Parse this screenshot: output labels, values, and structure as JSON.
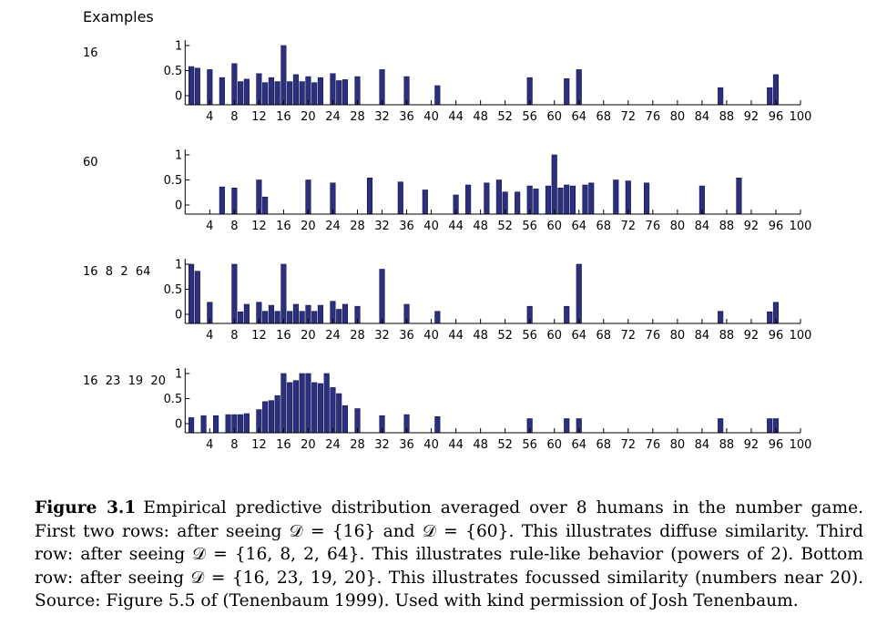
{
  "header": "Examples",
  "chart_data": [
    {
      "type": "bar",
      "label": "16",
      "x_ticks": [
        4,
        8,
        12,
        16,
        20,
        24,
        28,
        32,
        36,
        40,
        44,
        48,
        52,
        56,
        60,
        64,
        68,
        72,
        76,
        80,
        84,
        88,
        92,
        96,
        100
      ],
      "y_ticks": [
        "0",
        "0.5",
        "1"
      ],
      "xlim": [
        0,
        100
      ],
      "ylim": [
        0,
        1
      ],
      "points": [
        [
          1,
          0.58
        ],
        [
          2,
          0.55
        ],
        [
          4,
          0.52
        ],
        [
          6,
          0.36
        ],
        [
          8,
          0.64
        ],
        [
          9,
          0.28
        ],
        [
          10,
          0.33
        ],
        [
          12,
          0.44
        ],
        [
          13,
          0.26
        ],
        [
          14,
          0.36
        ],
        [
          15,
          0.28
        ],
        [
          16,
          1
        ],
        [
          17,
          0.28
        ],
        [
          18,
          0.42
        ],
        [
          19,
          0.28
        ],
        [
          20,
          0.38
        ],
        [
          21,
          0.26
        ],
        [
          22,
          0.36
        ],
        [
          24,
          0.44
        ],
        [
          25,
          0.3
        ],
        [
          26,
          0.32
        ],
        [
          28,
          0.38
        ],
        [
          32,
          0.52
        ],
        [
          36,
          0.38
        ],
        [
          41,
          0.2
        ],
        [
          56,
          0.36
        ],
        [
          62,
          0.34
        ],
        [
          64,
          0.52
        ],
        [
          87,
          0.16
        ],
        [
          95,
          0.16
        ],
        [
          96,
          0.42
        ]
      ]
    },
    {
      "type": "bar",
      "label": "60",
      "x_ticks": [
        4,
        8,
        12,
        16,
        20,
        24,
        28,
        32,
        36,
        40,
        44,
        48,
        52,
        56,
        60,
        64,
        68,
        72,
        76,
        80,
        84,
        88,
        92,
        96,
        100
      ],
      "y_ticks": [
        "0",
        "0.5",
        "1"
      ],
      "xlim": [
        0,
        100
      ],
      "ylim": [
        0,
        1
      ],
      "points": [
        [
          6,
          0.36
        ],
        [
          8,
          0.34
        ],
        [
          12,
          0.5
        ],
        [
          13,
          0.16
        ],
        [
          20,
          0.5
        ],
        [
          24,
          0.44
        ],
        [
          30,
          0.54
        ],
        [
          35,
          0.46
        ],
        [
          39,
          0.3
        ],
        [
          44,
          0.2
        ],
        [
          46,
          0.4
        ],
        [
          49,
          0.44
        ],
        [
          51,
          0.5
        ],
        [
          52,
          0.26
        ],
        [
          54,
          0.26
        ],
        [
          56,
          0.38
        ],
        [
          57,
          0.32
        ],
        [
          59,
          0.38
        ],
        [
          60,
          1
        ],
        [
          61,
          0.34
        ],
        [
          62,
          0.4
        ],
        [
          63,
          0.38
        ],
        [
          65,
          0.4
        ],
        [
          66,
          0.44
        ],
        [
          70,
          0.5
        ],
        [
          72,
          0.48
        ],
        [
          75,
          0.44
        ],
        [
          84,
          0.38
        ],
        [
          90,
          0.54
        ]
      ]
    },
    {
      "type": "bar",
      "label": "16  8  2  64",
      "x_ticks": [
        4,
        8,
        12,
        16,
        20,
        24,
        28,
        32,
        36,
        40,
        44,
        48,
        52,
        56,
        60,
        64,
        68,
        72,
        76,
        80,
        84,
        88,
        92,
        96,
        100
      ],
      "y_ticks": [
        "0",
        "0.5",
        "1"
      ],
      "xlim": [
        0,
        100
      ],
      "ylim": [
        0,
        1
      ],
      "points": [
        [
          1,
          1
        ],
        [
          2,
          0.86
        ],
        [
          4,
          0.24
        ],
        [
          8,
          1
        ],
        [
          9,
          0.05
        ],
        [
          10,
          0.2
        ],
        [
          12,
          0.24
        ],
        [
          13,
          0.06
        ],
        [
          14,
          0.18
        ],
        [
          15,
          0.06
        ],
        [
          16,
          1
        ],
        [
          17,
          0.06
        ],
        [
          18,
          0.2
        ],
        [
          19,
          0.06
        ],
        [
          20,
          0.18
        ],
        [
          21,
          0.06
        ],
        [
          22,
          0.18
        ],
        [
          24,
          0.26
        ],
        [
          25,
          0.1
        ],
        [
          26,
          0.2
        ],
        [
          28,
          0.16
        ],
        [
          32,
          0.9
        ],
        [
          36,
          0.2
        ],
        [
          41,
          0.06
        ],
        [
          56,
          0.16
        ],
        [
          62,
          0.16
        ],
        [
          64,
          1
        ],
        [
          87,
          0.06
        ],
        [
          95,
          0.05
        ],
        [
          96,
          0.24
        ]
      ]
    },
    {
      "type": "bar",
      "label": "16  23  19  20",
      "x_ticks": [
        4,
        8,
        12,
        16,
        20,
        24,
        28,
        32,
        36,
        40,
        44,
        48,
        52,
        56,
        60,
        64,
        68,
        72,
        76,
        80,
        84,
        88,
        92,
        96,
        100
      ],
      "y_ticks": [
        "0",
        "0.5",
        "1"
      ],
      "xlim": [
        0,
        100
      ],
      "ylim": [
        0,
        1
      ],
      "points": [
        [
          1,
          0.12
        ],
        [
          3,
          0.16
        ],
        [
          5,
          0.16
        ],
        [
          7,
          0.18
        ],
        [
          8,
          0.18
        ],
        [
          9,
          0.18
        ],
        [
          10,
          0.2
        ],
        [
          12,
          0.28
        ],
        [
          13,
          0.44
        ],
        [
          14,
          0.46
        ],
        [
          15,
          0.56
        ],
        [
          16,
          1
        ],
        [
          17,
          0.82
        ],
        [
          18,
          0.86
        ],
        [
          19,
          1
        ],
        [
          20,
          1
        ],
        [
          21,
          0.82
        ],
        [
          22,
          0.8
        ],
        [
          23,
          1
        ],
        [
          24,
          0.72
        ],
        [
          25,
          0.6
        ],
        [
          26,
          0.36
        ],
        [
          28,
          0.3
        ],
        [
          32,
          0.16
        ],
        [
          36,
          0.18
        ],
        [
          41,
          0.14
        ],
        [
          56,
          0.1
        ],
        [
          62,
          0.1
        ],
        [
          64,
          0.1
        ],
        [
          87,
          0.1
        ],
        [
          95,
          0.1
        ],
        [
          96,
          0.1
        ]
      ]
    }
  ],
  "caption": {
    "label": "Figure 3.1",
    "text": "Empirical predictive distribution averaged over 8 humans in the number game. First two rows: after seeing 𝒟 = {16} and 𝒟 = {60}. This illustrates diffuse similarity. Third row: after seeing 𝒟 = {16, 8, 2, 64}. This illustrates rule-like behavior (powers of 2). Bottom row: after seeing 𝒟 = {16, 23, 19, 20}. This illustrates focussed similarity (numbers near 20). Source: Figure 5.5 of (Tenenbaum 1999). Used with kind permission of Josh Tenenbaum."
  },
  "colors": {
    "bar_fill": "#2b2f7e",
    "bar_edge": "#15174a",
    "axis": "#000000"
  }
}
